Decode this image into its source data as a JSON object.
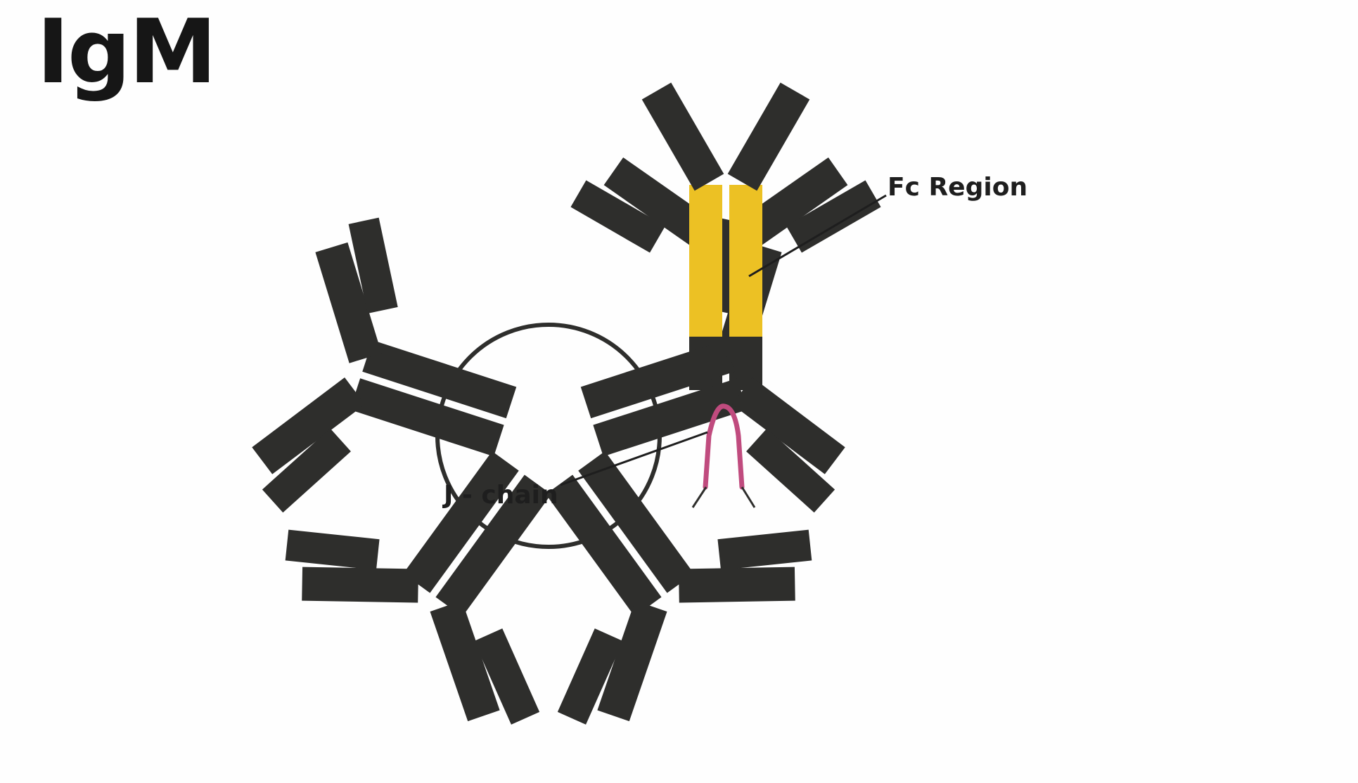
{
  "title": "IgM",
  "labels": {
    "fc_region": "Fc Region",
    "j_chain": "J - chain"
  },
  "colors": {
    "background": "#fefefe",
    "antibody": "#2e2e2c",
    "fc_region": "#ecc124",
    "j_chain": "#c04b7e",
    "text": "#1e1e1e"
  }
}
